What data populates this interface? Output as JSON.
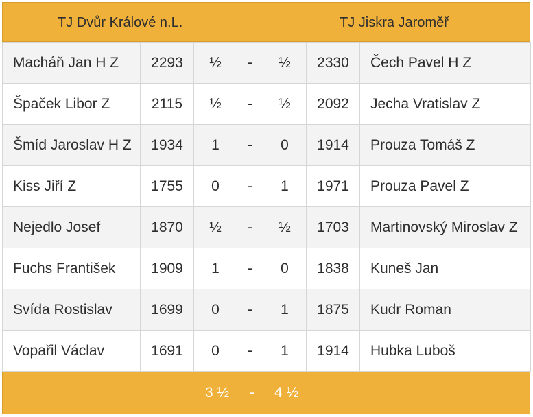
{
  "header": {
    "home_team": "TJ Dvůr Králové n.L.",
    "away_team": "TJ Jiskra Jaroměř"
  },
  "separator": "-",
  "rows": [
    {
      "home_player": "Macháň Jan H Z",
      "home_rating": "2293",
      "home_score": "½",
      "away_score": "½",
      "away_rating": "2330",
      "away_player": "Čech Pavel H Z"
    },
    {
      "home_player": "Špaček Libor Z",
      "home_rating": "2115",
      "home_score": "½",
      "away_score": "½",
      "away_rating": "2092",
      "away_player": "Jecha Vratislav Z"
    },
    {
      "home_player": "Šmíd Jaroslav H Z",
      "home_rating": "1934",
      "home_score": "1",
      "away_score": "0",
      "away_rating": "1914",
      "away_player": "Prouza Tomáš Z"
    },
    {
      "home_player": "Kiss Jiří Z",
      "home_rating": "1755",
      "home_score": "0",
      "away_score": "1",
      "away_rating": "1971",
      "away_player": "Prouza Pavel Z"
    },
    {
      "home_player": "Nejedlo Josef",
      "home_rating": "1870",
      "home_score": "½",
      "away_score": "½",
      "away_rating": "1703",
      "away_player": "Martinovský Miroslav Z"
    },
    {
      "home_player": "Fuchs František",
      "home_rating": "1909",
      "home_score": "1",
      "away_score": "0",
      "away_rating": "1838",
      "away_player": "Kuneš Jan"
    },
    {
      "home_player": "Svída Rostislav",
      "home_rating": "1699",
      "home_score": "0",
      "away_score": "1",
      "away_rating": "1875",
      "away_player": "Kudr Roman"
    },
    {
      "home_player": "Vopařil Václav",
      "home_rating": "1691",
      "home_score": "0",
      "away_score": "1",
      "away_rating": "1914",
      "away_player": "Hubka Luboš"
    }
  ],
  "total": {
    "home": "3 ½",
    "away": "4 ½"
  }
}
